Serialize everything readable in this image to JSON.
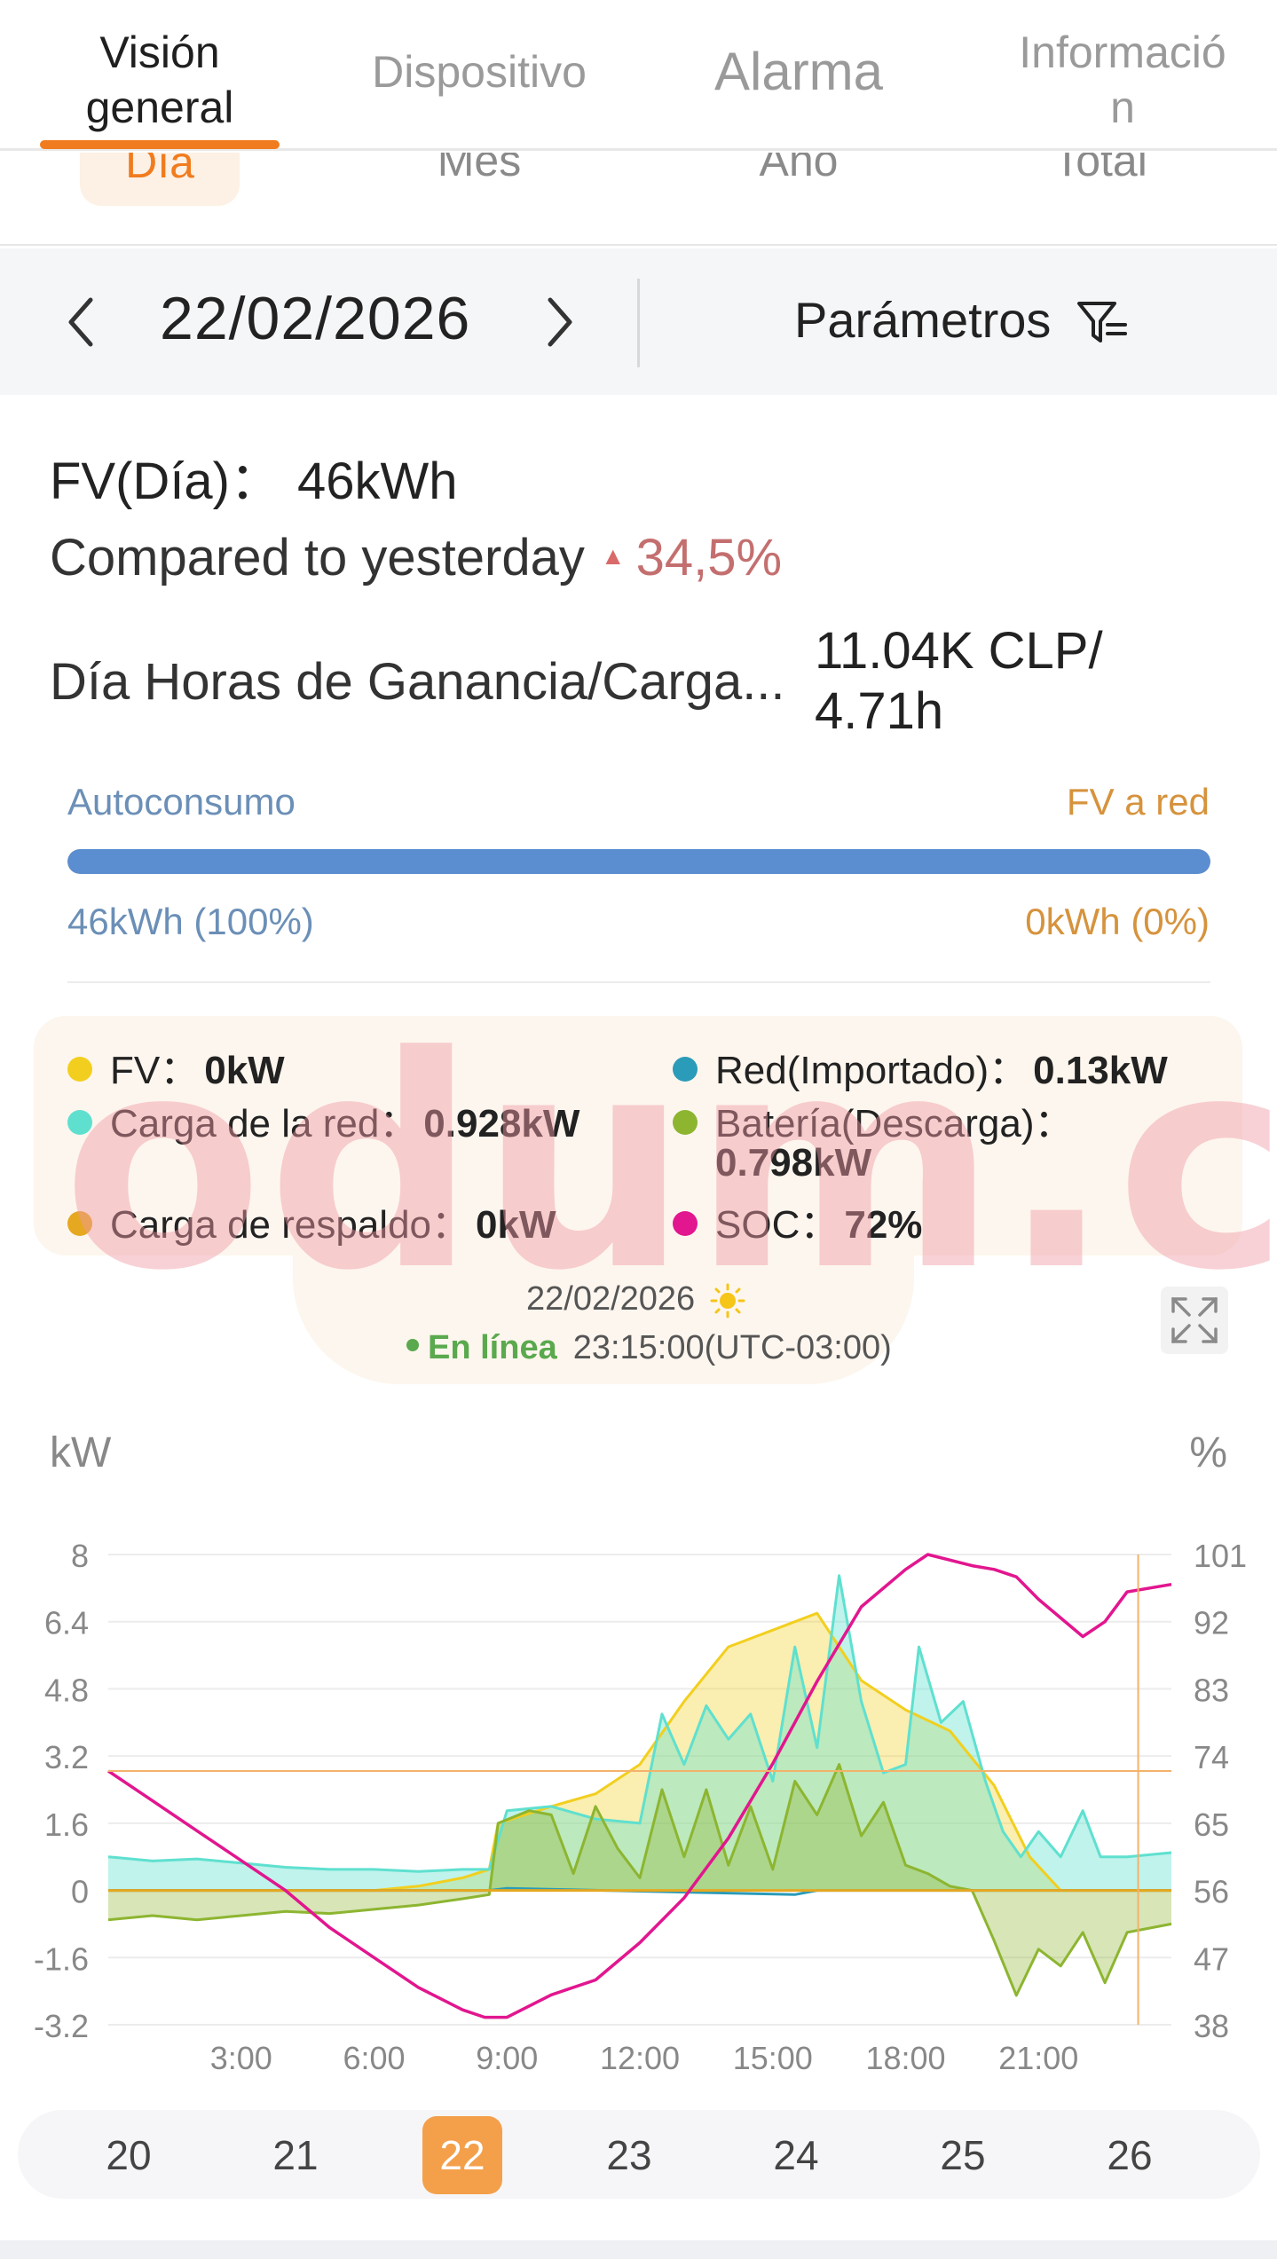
{
  "tabs": [
    {
      "label": "Visión general",
      "line1": "Visión",
      "line2": "general",
      "active": true
    },
    {
      "label": "Dispositivo",
      "active": false
    },
    {
      "label": "Alarma",
      "active": false
    },
    {
      "label": "Información",
      "line1": "Informació",
      "line2": "n",
      "active": false
    }
  ],
  "subtabs": [
    {
      "label": "Día",
      "active": true
    },
    {
      "label": "Mes",
      "active": false
    },
    {
      "label": "Año",
      "active": false
    },
    {
      "label": "Total",
      "active": false
    }
  ],
  "datebar": {
    "date": "22/02/2026",
    "params_label": "Parámetros",
    "icons": {
      "prev": "chevron-left-icon",
      "next": "chevron-right-icon",
      "filter": "filter-icon"
    }
  },
  "summary": {
    "pv_day_label": "FV(Día)：",
    "pv_day_value": "46kWh",
    "compare_label": "Compared to yesterday",
    "compare_arrow": "▲",
    "compare_value": "34,5%",
    "gain_label": "Día Horas de Ganancia/Carga...",
    "gain_value_line1": "11.04K CLP/",
    "gain_value_line2": "4.71h"
  },
  "self_consumption": {
    "left_label": "Autoconsumo",
    "right_label": "FV a red",
    "left_value": "46kWh (100%)",
    "right_value": "0kWh (0%)",
    "fill_fraction": 1.0,
    "colors": {
      "left": "#5b8ed0",
      "right": "#f0c48a"
    }
  },
  "status_panel": {
    "legend": [
      {
        "label": "FV：",
        "value": "0kW",
        "color": "#f2cf1f"
      },
      {
        "label": "Red(Importado)：",
        "value": "0.13kW",
        "color": "#2a9bb8"
      },
      {
        "label": "Carga de la red：",
        "value": "0.928kW",
        "color": "#5fe0cf"
      },
      {
        "label": "Batería(Descarga)：",
        "value": "0.798kW",
        "color": "#8db530"
      },
      {
        "label": "Carga de respaldo：",
        "value": "0kW",
        "color": "#e6a820"
      },
      {
        "label": "SOC：",
        "value": "72%",
        "color": "#e2168f"
      }
    ],
    "watermark": "odum.cl",
    "date": "22/02/2026",
    "weather_icon": "sun-icon",
    "status_label": "En línea",
    "time": "23:15:00(UTC-03:00)",
    "expand_icon": "expand-icon"
  },
  "chart_data": {
    "type": "line",
    "xlabel": "",
    "ylabel": "kW",
    "y2label": "%",
    "x_ticks": [
      "3:00",
      "6:00",
      "9:00",
      "12:00",
      "15:00",
      "18:00",
      "21:00"
    ],
    "ylim": [
      -3.2,
      8
    ],
    "y_ticks": [
      8,
      6.4,
      4.8,
      3.2,
      1.6,
      0,
      -1.6,
      -3.2
    ],
    "y2lim": [
      38,
      101
    ],
    "y2_ticks": [
      101,
      92,
      83,
      74,
      65,
      56,
      47,
      38
    ],
    "cursor_time": "23:15",
    "series": [
      {
        "name": "FV",
        "color": "#f2cf1f",
        "axis": "left",
        "points": [
          [
            0,
            0
          ],
          [
            6,
            0
          ],
          [
            7,
            0.1
          ],
          [
            8,
            0.3
          ],
          [
            8.6,
            0.5
          ],
          [
            8.8,
            1.6
          ],
          [
            10,
            2.0
          ],
          [
            11,
            2.3
          ],
          [
            12,
            3.0
          ],
          [
            13,
            4.5
          ],
          [
            14,
            5.8
          ],
          [
            15,
            6.2
          ],
          [
            16,
            6.6
          ],
          [
            17,
            5.0
          ],
          [
            18,
            4.3
          ],
          [
            19,
            3.8
          ],
          [
            20,
            2.5
          ],
          [
            20.8,
            0.8
          ],
          [
            21.5,
            0
          ],
          [
            24,
            0
          ]
        ]
      },
      {
        "name": "Carga de la red",
        "color": "#5fe0cf",
        "axis": "left",
        "points": [
          [
            0,
            0.8
          ],
          [
            1,
            0.7
          ],
          [
            2,
            0.75
          ],
          [
            3,
            0.65
          ],
          [
            4,
            0.55
          ],
          [
            5,
            0.5
          ],
          [
            6,
            0.5
          ],
          [
            7,
            0.45
          ],
          [
            8,
            0.5
          ],
          [
            8.6,
            0.5
          ],
          [
            9,
            1.9
          ],
          [
            10,
            2.0
          ],
          [
            11,
            1.7
          ],
          [
            12,
            1.6
          ],
          [
            12.5,
            4.2
          ],
          [
            13,
            3.0
          ],
          [
            13.5,
            4.4
          ],
          [
            14,
            3.6
          ],
          [
            14.5,
            4.2
          ],
          [
            15,
            2.6
          ],
          [
            15.5,
            5.8
          ],
          [
            16,
            3.4
          ],
          [
            16.5,
            7.5
          ],
          [
            17,
            4.5
          ],
          [
            17.5,
            2.8
          ],
          [
            18,
            3.0
          ],
          [
            18.3,
            5.8
          ],
          [
            18.8,
            4.0
          ],
          [
            19.3,
            4.5
          ],
          [
            19.8,
            2.6
          ],
          [
            20.2,
            1.4
          ],
          [
            20.6,
            0.8
          ],
          [
            21,
            1.4
          ],
          [
            21.5,
            0.8
          ],
          [
            22,
            1.9
          ],
          [
            22.4,
            0.8
          ],
          [
            23,
            0.8
          ],
          [
            24,
            0.9
          ]
        ]
      },
      {
        "name": "Batería(Descarga)",
        "color": "#8db530",
        "axis": "left",
        "points": [
          [
            0,
            -0.7
          ],
          [
            1,
            -0.6
          ],
          [
            2,
            -0.7
          ],
          [
            3,
            -0.6
          ],
          [
            4,
            -0.5
          ],
          [
            5,
            -0.55
          ],
          [
            6,
            -0.45
          ],
          [
            7,
            -0.35
          ],
          [
            8,
            -0.2
          ],
          [
            8.6,
            -0.1
          ],
          [
            8.8,
            1.6
          ],
          [
            9.5,
            1.9
          ],
          [
            10,
            1.8
          ],
          [
            10.5,
            0.4
          ],
          [
            11,
            2.0
          ],
          [
            11.5,
            1.0
          ],
          [
            12,
            0.3
          ],
          [
            12.5,
            2.4
          ],
          [
            13,
            0.8
          ],
          [
            13.5,
            2.4
          ],
          [
            14,
            0.6
          ],
          [
            14.5,
            2.0
          ],
          [
            15,
            0.5
          ],
          [
            15.5,
            2.6
          ],
          [
            16,
            1.8
          ],
          [
            16.5,
            3.0
          ],
          [
            17,
            1.3
          ],
          [
            17.5,
            2.1
          ],
          [
            18,
            0.6
          ],
          [
            18.5,
            0.4
          ],
          [
            19,
            0.1
          ],
          [
            19.5,
            0
          ],
          [
            20,
            -1.2
          ],
          [
            20.5,
            -2.5
          ],
          [
            21,
            -1.4
          ],
          [
            21.5,
            -1.8
          ],
          [
            22,
            -1.0
          ],
          [
            22.5,
            -2.2
          ],
          [
            23,
            -1.0
          ],
          [
            24,
            -0.8
          ]
        ]
      },
      {
        "name": "Red(Importado)",
        "color": "#2a9bb8",
        "axis": "left",
        "points": [
          [
            0,
            0
          ],
          [
            8.6,
            0
          ],
          [
            9,
            0.05
          ],
          [
            15.5,
            -0.1
          ],
          [
            16,
            0
          ],
          [
            24,
            0
          ]
        ]
      },
      {
        "name": "Carga de respaldo",
        "color": "#e6a820",
        "axis": "left",
        "points": [
          [
            0,
            0
          ],
          [
            24,
            0
          ]
        ]
      },
      {
        "name": "SOC",
        "color": "#e2168f",
        "axis": "right",
        "points": [
          [
            0,
            72
          ],
          [
            1,
            68
          ],
          [
            2,
            64
          ],
          [
            3,
            60
          ],
          [
            4,
            56
          ],
          [
            5,
            51
          ],
          [
            6,
            47
          ],
          [
            7,
            43
          ],
          [
            8,
            40
          ],
          [
            8.5,
            39
          ],
          [
            9,
            39
          ],
          [
            10,
            42
          ],
          [
            11,
            44
          ],
          [
            12,
            49
          ],
          [
            13,
            55
          ],
          [
            14,
            63
          ],
          [
            15,
            73
          ],
          [
            16,
            84
          ],
          [
            17,
            94
          ],
          [
            18,
            99
          ],
          [
            18.5,
            101
          ],
          [
            19.5,
            99.5
          ],
          [
            20,
            99
          ],
          [
            20.5,
            98
          ],
          [
            21,
            95
          ],
          [
            22,
            90
          ],
          [
            22.5,
            92
          ],
          [
            23,
            96
          ],
          [
            24,
            97
          ]
        ]
      }
    ]
  },
  "days": [
    {
      "label": "20",
      "active": false
    },
    {
      "label": "21",
      "active": false
    },
    {
      "label": "22",
      "active": true
    },
    {
      "label": "23",
      "active": false
    },
    {
      "label": "24",
      "active": false
    },
    {
      "label": "25",
      "active": false
    },
    {
      "label": "26",
      "active": false
    }
  ]
}
